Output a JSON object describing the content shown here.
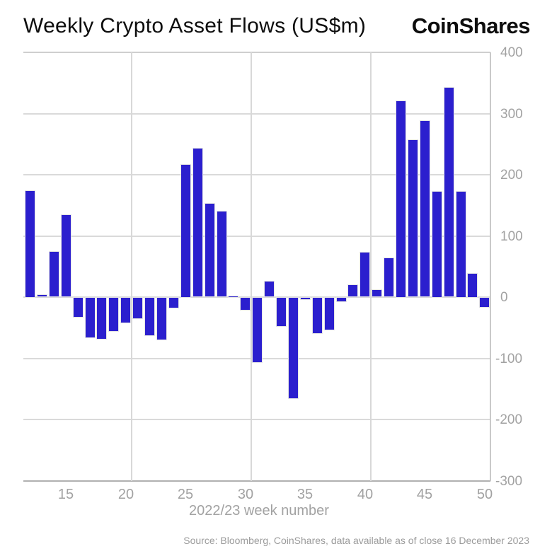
{
  "header": {
    "title": "Weekly Crypto Asset Flows (US$m)",
    "logo": "CoinShares"
  },
  "colors": {
    "bar": "#2b1fce",
    "grid": "#d8d8d8",
    "axis_text": "#a2a2a2"
  },
  "chart_data": {
    "type": "bar",
    "title": "Weekly Crypto Asset Flows (US$m)",
    "xlabel": "2022/23 week number",
    "ylabel": "",
    "x": [
      12,
      13,
      14,
      15,
      16,
      17,
      18,
      19,
      20,
      21,
      22,
      23,
      24,
      25,
      26,
      27,
      28,
      29,
      30,
      31,
      32,
      33,
      34,
      35,
      36,
      37,
      38,
      39,
      40,
      41,
      42,
      43,
      44,
      45,
      46,
      47,
      48,
      49,
      50
    ],
    "values": [
      175,
      5,
      75,
      135,
      -34,
      -67,
      -69,
      -57,
      -43,
      -36,
      -64,
      -71,
      -18,
      218,
      244,
      154,
      141,
      3,
      -22,
      -107,
      27,
      -48,
      -166,
      -5,
      -60,
      -54,
      -8,
      21,
      74,
      13,
      65,
      322,
      258,
      289,
      174,
      343,
      174,
      40,
      -17
    ],
    "x_ticks": [
      15,
      20,
      25,
      30,
      35,
      40,
      45,
      50
    ],
    "y_ticks": [
      400,
      300,
      200,
      100,
      0,
      -100,
      -200,
      -300
    ],
    "ylim": [
      -300,
      400
    ],
    "vgrid_weeks": [
      20.5,
      30.5,
      40.5,
      50.5
    ],
    "grid": "on",
    "legend": "none",
    "y_axis_side": "right"
  },
  "footer": {
    "source": "Source: Bloomberg, CoinShares, data available as of close 16 December 2023"
  }
}
